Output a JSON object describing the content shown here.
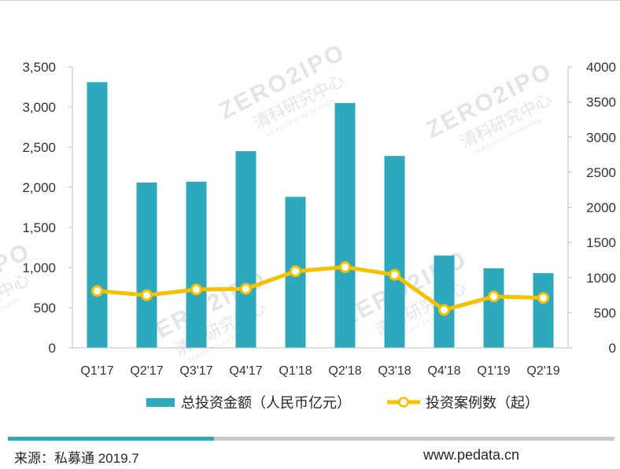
{
  "chart_data": {
    "type": "bar",
    "categories": [
      "Q1'17",
      "Q2'17",
      "Q3'17",
      "Q4'17",
      "Q1'18",
      "Q2'18",
      "Q3'18",
      "Q4'18",
      "Q1'19",
      "Q2'19"
    ],
    "series": [
      {
        "name": "总投资金额（人民币亿元）",
        "type": "bar",
        "y_axis": "left",
        "color": "#2ea8bc",
        "values": [
          3310,
          2060,
          2070,
          2450,
          1880,
          3050,
          2390,
          1150,
          990,
          930
        ]
      },
      {
        "name": "投资案例数（起）",
        "type": "line",
        "y_axis": "right",
        "color": "#f5c100",
        "marker": "circle",
        "values": [
          810,
          750,
          830,
          840,
          1090,
          1150,
          1040,
          540,
          730,
          710
        ]
      }
    ],
    "y_left": {
      "ylim": [
        0,
        3500
      ],
      "ticks": [
        0,
        500,
        1000,
        1500,
        2000,
        2500,
        3000,
        3500
      ],
      "tick_labels": [
        "0",
        "500",
        "1,000",
        "1,500",
        "2,000",
        "2,500",
        "3,000",
        "3,500"
      ]
    },
    "y_right": {
      "ylim": [
        0,
        4000
      ],
      "ticks": [
        0,
        500,
        1000,
        1500,
        2000,
        2500,
        3000,
        3500,
        4000
      ],
      "tick_labels": [
        "0",
        "500",
        "1000",
        "1500",
        "2000",
        "2500",
        "3000",
        "3500",
        "4000"
      ]
    },
    "grid": false,
    "legend": "bottom",
    "axis_color": "#bfbfbf"
  },
  "footer": {
    "source": "来源：私募通 2019.7",
    "website": "www.pedata.cn",
    "accent_color": "#2ea8bc",
    "rule_color": "#c9c9c9"
  },
  "watermark": {
    "brand": "ZERO2IPO",
    "name": "清科研究中心",
    "sub": "ZERO2IPO RESEARCH"
  }
}
